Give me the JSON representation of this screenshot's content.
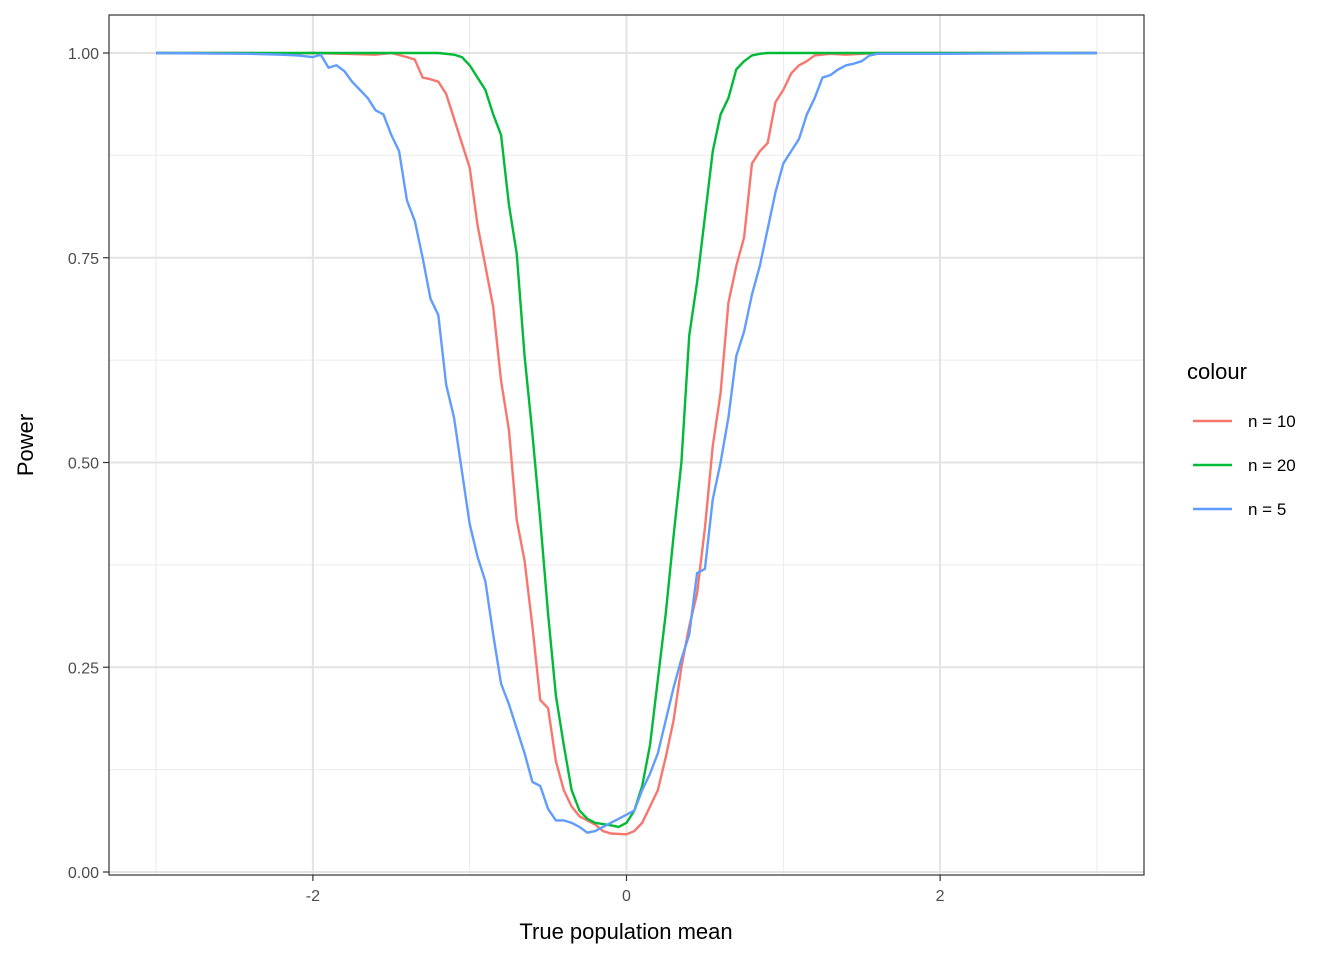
{
  "chart_data": {
    "type": "line",
    "title": "",
    "xlabel": "True population mean",
    "ylabel": "Power",
    "xlim": [
      -3.3,
      3.3
    ],
    "ylim": [
      0.0,
      1.0
    ],
    "x_ticks": [
      -2,
      0,
      2
    ],
    "x_tick_labels": [
      "-2",
      "0",
      "2"
    ],
    "y_ticks": [
      0.0,
      0.25,
      0.5,
      0.75,
      1.0
    ],
    "y_tick_labels": [
      "0.00",
      "0.25",
      "0.50",
      "0.75",
      "1.00"
    ],
    "grid": true,
    "legend": {
      "title": "colour",
      "position": "right"
    },
    "series": [
      {
        "name": "n = 10",
        "color": "#F8766D",
        "points": [
          [
            -3,
            1
          ],
          [
            -2.4,
            1
          ],
          [
            -2.2,
            0.999
          ],
          [
            -2,
            1
          ],
          [
            -1.8,
            0.999
          ],
          [
            -1.6,
            0.998
          ],
          [
            -1.5,
            1
          ],
          [
            -1.4,
            0.995
          ],
          [
            -1.35,
            0.992
          ],
          [
            -1.3,
            0.97
          ],
          [
            -1.25,
            0.968
          ],
          [
            -1.2,
            0.965
          ],
          [
            -1.15,
            0.95
          ],
          [
            -1.1,
            0.92
          ],
          [
            -1.05,
            0.89
          ],
          [
            -1,
            0.86
          ],
          [
            -0.95,
            0.79
          ],
          [
            -0.9,
            0.74
          ],
          [
            -0.85,
            0.69
          ],
          [
            -0.8,
            0.6
          ],
          [
            -0.75,
            0.54
          ],
          [
            -0.7,
            0.43
          ],
          [
            -0.65,
            0.38
          ],
          [
            -0.6,
            0.3
          ],
          [
            -0.55,
            0.21
          ],
          [
            -0.5,
            0.2
          ],
          [
            -0.45,
            0.135
          ],
          [
            -0.4,
            0.1
          ],
          [
            -0.35,
            0.08
          ],
          [
            -0.3,
            0.068
          ],
          [
            -0.25,
            0.063
          ],
          [
            -0.2,
            0.058
          ],
          [
            -0.15,
            0.05
          ],
          [
            -0.1,
            0.047
          ],
          [
            0,
            0.046
          ],
          [
            0.05,
            0.05
          ],
          [
            0.1,
            0.06
          ],
          [
            0.15,
            0.08
          ],
          [
            0.2,
            0.1
          ],
          [
            0.25,
            0.14
          ],
          [
            0.3,
            0.185
          ],
          [
            0.35,
            0.25
          ],
          [
            0.4,
            0.3
          ],
          [
            0.45,
            0.34
          ],
          [
            0.5,
            0.42
          ],
          [
            0.55,
            0.52
          ],
          [
            0.6,
            0.585
          ],
          [
            0.65,
            0.695
          ],
          [
            0.7,
            0.74
          ],
          [
            0.75,
            0.775
          ],
          [
            0.8,
            0.865
          ],
          [
            0.85,
            0.88
          ],
          [
            0.9,
            0.89
          ],
          [
            0.95,
            0.94
          ],
          [
            1,
            0.955
          ],
          [
            1.05,
            0.975
          ],
          [
            1.1,
            0.985
          ],
          [
            1.15,
            0.99
          ],
          [
            1.2,
            0.997
          ],
          [
            1.3,
            0.999
          ],
          [
            1.4,
            0.998
          ],
          [
            1.5,
            0.999
          ],
          [
            1.6,
            1
          ],
          [
            2,
            1
          ],
          [
            3,
            1
          ]
        ]
      },
      {
        "name": "n = 20",
        "color": "#00BA38",
        "points": [
          [
            -3,
            1
          ],
          [
            -1.2,
            1
          ],
          [
            -1.1,
            0.998
          ],
          [
            -1.05,
            0.995
          ],
          [
            -1,
            0.985
          ],
          [
            -0.95,
            0.97
          ],
          [
            -0.9,
            0.955
          ],
          [
            -0.85,
            0.925
          ],
          [
            -0.8,
            0.9
          ],
          [
            -0.75,
            0.815
          ],
          [
            -0.7,
            0.755
          ],
          [
            -0.65,
            0.63
          ],
          [
            -0.6,
            0.535
          ],
          [
            -0.55,
            0.43
          ],
          [
            -0.5,
            0.315
          ],
          [
            -0.45,
            0.215
          ],
          [
            -0.4,
            0.155
          ],
          [
            -0.35,
            0.1
          ],
          [
            -0.3,
            0.075
          ],
          [
            -0.25,
            0.065
          ],
          [
            -0.2,
            0.06
          ],
          [
            -0.1,
            0.057
          ],
          [
            -0.05,
            0.055
          ],
          [
            0,
            0.06
          ],
          [
            0.05,
            0.075
          ],
          [
            0.1,
            0.105
          ],
          [
            0.15,
            0.155
          ],
          [
            0.2,
            0.235
          ],
          [
            0.25,
            0.315
          ],
          [
            0.3,
            0.41
          ],
          [
            0.35,
            0.5
          ],
          [
            0.4,
            0.655
          ],
          [
            0.45,
            0.72
          ],
          [
            0.5,
            0.8
          ],
          [
            0.55,
            0.88
          ],
          [
            0.6,
            0.925
          ],
          [
            0.65,
            0.945
          ],
          [
            0.7,
            0.98
          ],
          [
            0.75,
            0.99
          ],
          [
            0.8,
            0.997
          ],
          [
            0.85,
            0.999
          ],
          [
            0.9,
            1
          ],
          [
            3,
            1
          ]
        ]
      },
      {
        "name": "n = 5",
        "color": "#619CFF",
        "points": [
          [
            -3,
            1
          ],
          [
            -2.4,
            0.999
          ],
          [
            -2.2,
            0.998
          ],
          [
            -2.1,
            0.997
          ],
          [
            -2,
            0.995
          ],
          [
            -1.95,
            0.998
          ],
          [
            -1.9,
            0.982
          ],
          [
            -1.85,
            0.985
          ],
          [
            -1.8,
            0.978
          ],
          [
            -1.75,
            0.965
          ],
          [
            -1.7,
            0.955
          ],
          [
            -1.65,
            0.945
          ],
          [
            -1.6,
            0.93
          ],
          [
            -1.55,
            0.925
          ],
          [
            -1.5,
            0.9
          ],
          [
            -1.45,
            0.88
          ],
          [
            -1.4,
            0.82
          ],
          [
            -1.35,
            0.795
          ],
          [
            -1.3,
            0.75
          ],
          [
            -1.25,
            0.7
          ],
          [
            -1.2,
            0.68
          ],
          [
            -1.15,
            0.595
          ],
          [
            -1.1,
            0.555
          ],
          [
            -1.05,
            0.49
          ],
          [
            -1,
            0.425
          ],
          [
            -0.95,
            0.385
          ],
          [
            -0.9,
            0.355
          ],
          [
            -0.85,
            0.29
          ],
          [
            -0.8,
            0.23
          ],
          [
            -0.75,
            0.205
          ],
          [
            -0.7,
            0.175
          ],
          [
            -0.65,
            0.145
          ],
          [
            -0.6,
            0.11
          ],
          [
            -0.55,
            0.105
          ],
          [
            -0.5,
            0.077
          ],
          [
            -0.45,
            0.063
          ],
          [
            -0.4,
            0.063
          ],
          [
            -0.35,
            0.06
          ],
          [
            -0.3,
            0.055
          ],
          [
            -0.25,
            0.048
          ],
          [
            -0.2,
            0.05
          ],
          [
            -0.15,
            0.055
          ],
          [
            -0.1,
            0.06
          ],
          [
            -0.05,
            0.065
          ],
          [
            0,
            0.07
          ],
          [
            0.05,
            0.075
          ],
          [
            0.1,
            0.1
          ],
          [
            0.15,
            0.12
          ],
          [
            0.2,
            0.145
          ],
          [
            0.25,
            0.185
          ],
          [
            0.3,
            0.225
          ],
          [
            0.35,
            0.26
          ],
          [
            0.4,
            0.29
          ],
          [
            0.45,
            0.365
          ],
          [
            0.5,
            0.37
          ],
          [
            0.55,
            0.455
          ],
          [
            0.6,
            0.5
          ],
          [
            0.65,
            0.555
          ],
          [
            0.7,
            0.63
          ],
          [
            0.75,
            0.66
          ],
          [
            0.8,
            0.705
          ],
          [
            0.85,
            0.74
          ],
          [
            0.9,
            0.785
          ],
          [
            0.95,
            0.83
          ],
          [
            1,
            0.865
          ],
          [
            1.05,
            0.88
          ],
          [
            1.1,
            0.895
          ],
          [
            1.15,
            0.925
          ],
          [
            1.2,
            0.945
          ],
          [
            1.25,
            0.97
          ],
          [
            1.3,
            0.973
          ],
          [
            1.35,
            0.98
          ],
          [
            1.4,
            0.985
          ],
          [
            1.45,
            0.987
          ],
          [
            1.5,
            0.99
          ],
          [
            1.55,
            0.997
          ],
          [
            1.6,
            0.999
          ],
          [
            2,
            0.999
          ],
          [
            3,
            1
          ]
        ]
      }
    ]
  }
}
